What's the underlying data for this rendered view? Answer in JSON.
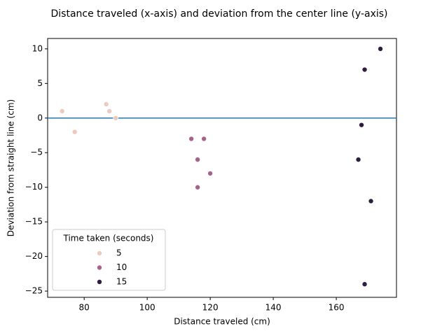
{
  "chart_data": {
    "type": "scatter",
    "title": "Distance traveled (x-axis) and deviation from the center line (y-axis)",
    "x_label": "Distance traveled (cm)",
    "y_label": "Deviation from straight line (cm)",
    "legend_title": "Time taken (seconds)",
    "legend_position": "lower left",
    "series": [
      {
        "name": "5",
        "color": "#eccbbf",
        "x": [
          73,
          77,
          87,
          88,
          90
        ],
        "values": [
          1,
          -2,
          2,
          1,
          0
        ]
      },
      {
        "name": "10",
        "color": "#a8618a",
        "x": [
          114,
          118,
          116,
          120,
          116
        ],
        "values": [
          -3,
          -3,
          -6,
          -8,
          -10
        ]
      },
      {
        "name": "15",
        "color": "#2d1e3e",
        "x": [
          174,
          169,
          168,
          167,
          171,
          169
        ],
        "values": [
          10,
          7,
          -1,
          -6,
          -12,
          -24
        ]
      }
    ],
    "hline": 0,
    "hline_color": "#1f77b4",
    "xlim": [
      68.4,
      179.1
    ],
    "xticks": [
      80,
      100,
      120,
      140,
      160
    ],
    "ylim": [
      -25.9,
      11.5
    ],
    "yticks": [
      {
        "value": -25,
        "label": "−25"
      },
      {
        "value": -20,
        "label": "−20"
      },
      {
        "value": -15,
        "label": "−15"
      },
      {
        "value": -10,
        "label": "−10"
      },
      {
        "value": -5,
        "label": "−5"
      },
      0,
      5,
      10
    ]
  }
}
